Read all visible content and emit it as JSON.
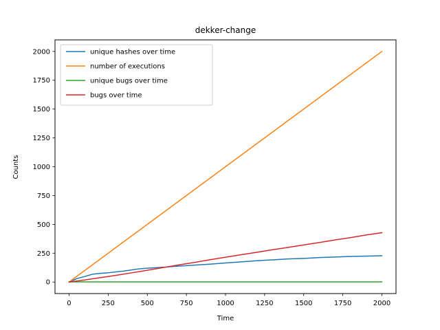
{
  "chart_data": {
    "type": "line",
    "title": "dekker-change",
    "xlabel": "Time",
    "ylabel": "Counts",
    "xlim": [
      -90,
      2090
    ],
    "ylim": [
      -100,
      2100
    ],
    "xticks": [
      0,
      250,
      500,
      750,
      1000,
      1250,
      1500,
      1750,
      2000
    ],
    "yticks": [
      0,
      250,
      500,
      750,
      1000,
      1250,
      1500,
      1750,
      2000
    ],
    "xtick_labels": [
      "0",
      "250",
      "500",
      "750",
      "1000",
      "1250",
      "1500",
      "1750",
      "2000"
    ],
    "ytick_labels": [
      "0",
      "250",
      "500",
      "750",
      "1000",
      "1250",
      "1500",
      "1750",
      "2000"
    ],
    "grid": false,
    "legend_position": "upper-left",
    "series": [
      {
        "name": "unique hashes over time",
        "color": "#1f77b4",
        "x": [
          0,
          50,
          100,
          150,
          200,
          250,
          300,
          350,
          400,
          450,
          500,
          600,
          700,
          800,
          900,
          1000,
          1100,
          1200,
          1300,
          1400,
          1500,
          1600,
          1700,
          1800,
          1900,
          2000
        ],
        "y": [
          0,
          30,
          48,
          68,
          75,
          80,
          88,
          95,
          105,
          115,
          120,
          128,
          138,
          147,
          155,
          165,
          175,
          185,
          192,
          200,
          205,
          212,
          217,
          222,
          225,
          228
        ]
      },
      {
        "name": "number of executions",
        "color": "#ff7f0e",
        "x": [
          0,
          2000
        ],
        "y": [
          0,
          2000
        ]
      },
      {
        "name": "unique bugs over time",
        "color": "#2ca02c",
        "x": [
          0,
          2000
        ],
        "y": [
          1,
          1
        ]
      },
      {
        "name": "bugs over time",
        "color": "#d62728",
        "x": [
          0,
          100,
          200,
          300,
          400,
          500,
          600,
          700,
          800,
          900,
          1000,
          1100,
          1200,
          1300,
          1400,
          1500,
          1600,
          1700,
          1800,
          1900,
          2000
        ],
        "y": [
          0,
          18,
          38,
          58,
          80,
          102,
          125,
          148,
          170,
          193,
          215,
          237,
          258,
          280,
          300,
          322,
          343,
          365,
          385,
          408,
          428
        ]
      }
    ]
  }
}
